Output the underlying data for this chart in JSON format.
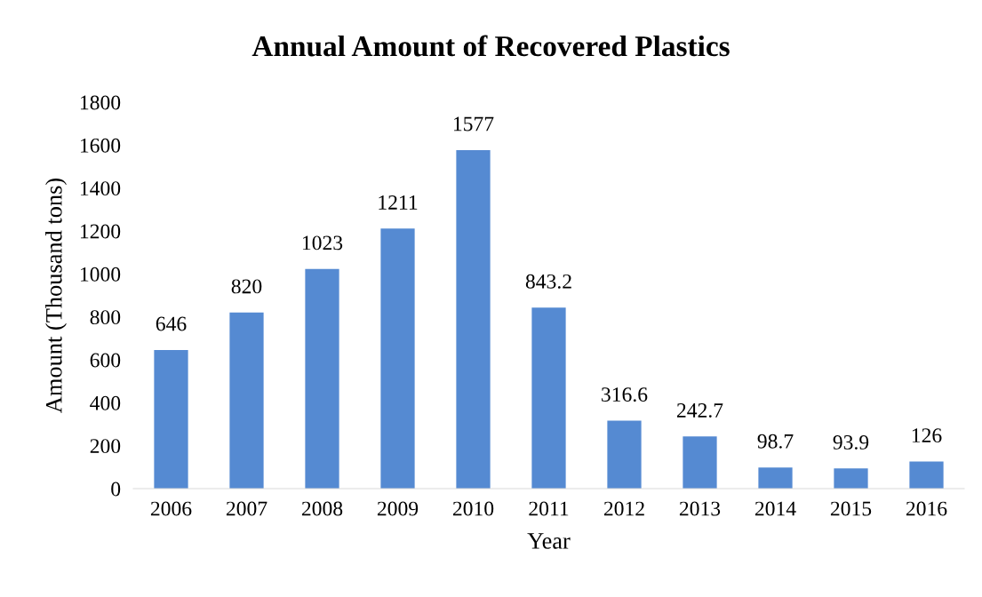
{
  "chart_data": {
    "type": "bar",
    "title": "Annual Amount of Recovered Plastics",
    "xlabel": "Year",
    "ylabel": "Amount (Thousand tons)",
    "categories": [
      "2006",
      "2007",
      "2008",
      "2009",
      "2010",
      "2011",
      "2012",
      "2013",
      "2014",
      "2015",
      "2016"
    ],
    "values": [
      646,
      820,
      1023,
      1211,
      1577,
      843.2,
      316.6,
      242.7,
      98.7,
      93.9,
      126
    ],
    "color": "#558ad2",
    "ylim": [
      0,
      1800
    ],
    "yticks": [
      0,
      200,
      400,
      600,
      800,
      1000,
      1200,
      1400,
      1600,
      1800
    ],
    "data_labels": true,
    "grid": false
  }
}
